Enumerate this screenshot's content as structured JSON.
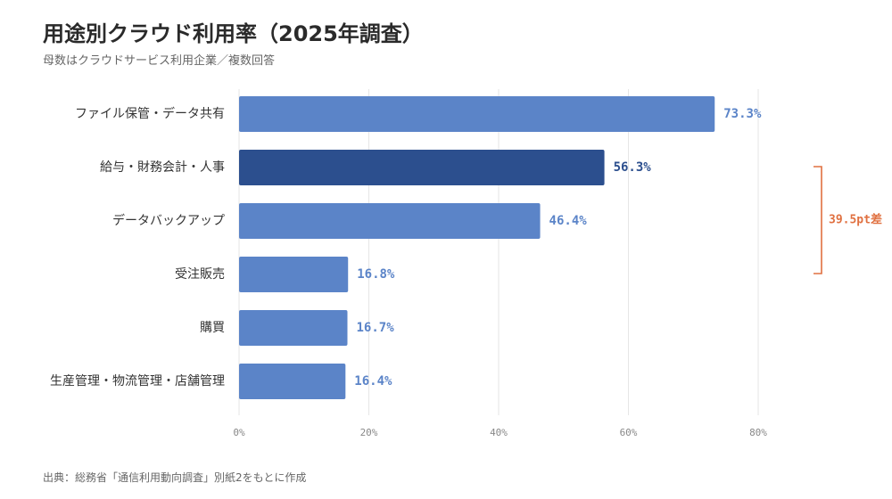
{
  "title": "用途別クラウド利用率（2025年調査）",
  "subtitle": "母数はクラウドサービス利用企業／複数回答",
  "source": "出典：総務省「通信利用動向調査」別紙2をもとに作成",
  "colors": {
    "bar": "#5b84c8",
    "bar_highlight": "#2c4f8e",
    "annotation": "#e07040",
    "grid": "#e6e6e6"
  },
  "chart_data": {
    "type": "bar",
    "orientation": "horizontal",
    "categories": [
      "ファイル保管・データ共有",
      "給与・財務会計・人事",
      "データバックアップ",
      "受注販売",
      "購買",
      "生産管理・物流管理・店舗管理"
    ],
    "values": [
      73.3,
      56.3,
      46.4,
      16.8,
      16.7,
      16.4
    ],
    "value_labels": [
      "73.3%",
      "56.3%",
      "46.4%",
      "16.8%",
      "16.7%",
      "16.4%"
    ],
    "highlight_index": 1,
    "xlim": [
      0,
      80
    ],
    "xticks": [
      0,
      20,
      40,
      60,
      80
    ],
    "xtick_labels": [
      "0%",
      "20%",
      "40%",
      "60%",
      "80%"
    ],
    "grid": true,
    "annotation": {
      "label": "39.5pt差",
      "from_index": 1,
      "to_index": 3
    }
  }
}
